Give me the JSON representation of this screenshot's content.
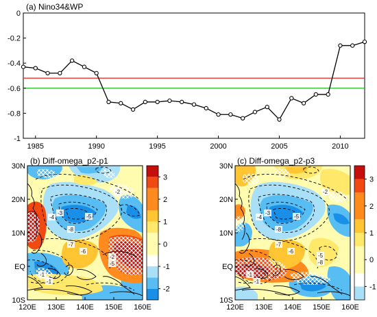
{
  "colors": {
    "series": "#000000",
    "ref_red": "#e8322c",
    "ref_green": "#22c322",
    "scale": [
      "#0b5fc9",
      "#1a8fe8",
      "#57bdf2",
      "#a9e0f7",
      "#ffffff",
      "#fffcb0",
      "#ffe86a",
      "#ffc532",
      "#ff8a1e",
      "#f04a12",
      "#c60f0a"
    ],
    "hatch": "#ffffff"
  },
  "chart_data": [
    {
      "type": "line",
      "title": "(a) Nino34&WP",
      "xlabel": "",
      "ylabel": "",
      "xlim": [
        1984,
        2012
      ],
      "ylim": [
        -1,
        0
      ],
      "x_ticks": [
        "1985",
        "1990",
        "1995",
        "2000",
        "2005",
        "2010"
      ],
      "y_ticks": [
        "0",
        "-0.2",
        "-0.4",
        "-0.6",
        "-0.8",
        "-1"
      ],
      "x": [
        1984,
        1985,
        1986,
        1987,
        1988,
        1989,
        1990,
        1991,
        1992,
        1993,
        1994,
        1995,
        1996,
        1997,
        1998,
        1999,
        2000,
        2001,
        2002,
        2003,
        2004,
        2005,
        2006,
        2007,
        2008,
        2009,
        2010,
        2011,
        2012
      ],
      "y": [
        -0.43,
        -0.44,
        -0.48,
        -0.48,
        -0.38,
        -0.43,
        -0.48,
        -0.71,
        -0.72,
        -0.77,
        -0.71,
        -0.71,
        -0.7,
        -0.71,
        -0.73,
        -0.76,
        -0.81,
        -0.81,
        -0.84,
        -0.79,
        -0.75,
        -0.85,
        -0.68,
        -0.72,
        -0.65,
        -0.65,
        -0.26,
        -0.26,
        -0.23
      ],
      "reference_lines": [
        -0.52,
        -0.6
      ],
      "grid": false
    },
    {
      "type": "heatmap",
      "title": "(b) Diff-omega_p2-p1",
      "x_ticks": [
        "120E",
        "130E",
        "140E",
        "150E",
        "160E"
      ],
      "y_ticks": [
        "30N",
        "20N",
        "10N",
        "EQ",
        "10S"
      ],
      "xlim": [
        120,
        160
      ],
      "ylim": [
        -10,
        30
      ],
      "colorbar_ticks": [
        "3",
        "2",
        "1",
        "0",
        "-1",
        "-2"
      ],
      "colorbar_range": [
        -2.5,
        3.5
      ],
      "contour_labels": [
        "-2",
        "-4",
        "-3",
        "-5",
        "-8",
        "-7",
        "-6",
        "-1",
        "-1",
        "-2",
        "-5"
      ]
    },
    {
      "type": "heatmap",
      "title": "(c) Diff-omega_p2-p3",
      "x_ticks": [
        "120E",
        "130E",
        "140E",
        "150E",
        "160E"
      ],
      "y_ticks": [
        "30N",
        "20N",
        "10N",
        "EQ",
        "10S"
      ],
      "xlim": [
        120,
        160
      ],
      "ylim": [
        -10,
        30
      ],
      "colorbar_ticks": [
        "3",
        "2",
        "1",
        "0",
        "-1"
      ],
      "colorbar_range": [
        -1.5,
        3.5
      ],
      "contour_labels": [
        "-2",
        "-4",
        "-3",
        "-5",
        "-8",
        "-7",
        "-6",
        "-1",
        "-1",
        "-5",
        "-8"
      ]
    }
  ]
}
